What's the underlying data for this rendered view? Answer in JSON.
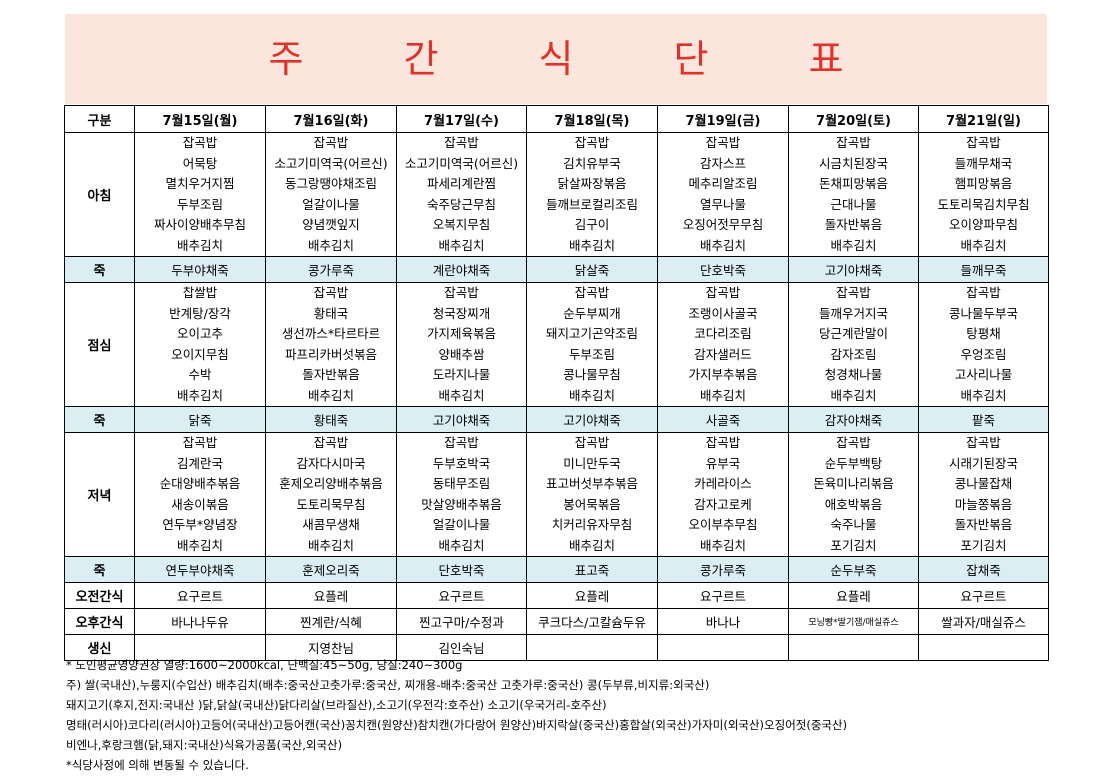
{
  "title": "주 간 식 단 표",
  "columns": {
    "header": "구분",
    "days": [
      "7월15일(월)",
      "7월16일(화)",
      "7월17일(수)",
      "7월18일(목)",
      "7월19일(금)",
      "7월20일(토)",
      "7월21일(일)"
    ]
  },
  "breakfast": {
    "label": "아침",
    "days": [
      [
        "잡곡밥",
        "어묵탕",
        "멸치우거지찜",
        "두부조림",
        "짜사이양배추무침",
        "배추김치"
      ],
      [
        "잡곡밥",
        "소고기미역국(어르신)",
        "동그랑땡야채조림",
        "얼갈이나물",
        "양념깻잎지",
        "배추김치"
      ],
      [
        "잡곡밥",
        "소고기미역국(어르신)",
        "파세리계란찜",
        "숙주당근무침",
        "오복지무침",
        "배추김치"
      ],
      [
        "잡곡밥",
        "김치유부국",
        "닭살짜장볶음",
        "들깨브로컬리조림",
        "김구이",
        "배추김치"
      ],
      [
        "잡곡밥",
        "감자스프",
        "메추리알조림",
        "열무나물",
        "오징어젓무무침",
        "배추김치"
      ],
      [
        "잡곡밥",
        "시금치된장국",
        "돈채피망볶음",
        "근대나물",
        "돌자반볶음",
        "배추김치"
      ],
      [
        "잡곡밥",
        "들깨무채국",
        "햄피망볶음",
        "도토리묵김치무침",
        "오이양파무침",
        "배추김치"
      ]
    ]
  },
  "juk1": {
    "label": "죽",
    "days": [
      "두부야채죽",
      "콩가루죽",
      "계란야채죽",
      "닭살죽",
      "단호박죽",
      "고기야채죽",
      "들깨무죽"
    ]
  },
  "lunch": {
    "label": "점심",
    "days": [
      [
        "찹쌀밥",
        "반계탕/장각",
        "오이고추",
        "오이지무침",
        "수박",
        "배추김치"
      ],
      [
        "잡곡밥",
        "황태국",
        "생선까스*타르타르",
        "파프리카버섯볶음",
        "돌자반볶음",
        "배추김치"
      ],
      [
        "잡곡밥",
        "청국장찌개",
        "가지제육볶음",
        "양배추쌈",
        "도라지나물",
        "배추김치"
      ],
      [
        "잡곡밥",
        "순두부찌개",
        "돼지고기곤약조림",
        "두부조림",
        "콩나물무침",
        "배추김치"
      ],
      [
        "잡곡밥",
        "조랭이사골국",
        "코다리조림",
        "감자샐러드",
        "가지부추볶음",
        "배추김치"
      ],
      [
        "잡곡밥",
        "들깨우거지국",
        "당근계란말이",
        "감자조림",
        "청경채나물",
        "배추김치"
      ],
      [
        "잡곡밥",
        "콩나물두부국",
        "탕평채",
        "우엉조림",
        "고사리나물",
        "배추김치"
      ]
    ]
  },
  "juk2": {
    "label": "죽",
    "days": [
      "닭죽",
      "황태죽",
      "고기야채죽",
      "고기야채죽",
      "사골죽",
      "감자야채죽",
      "팥죽"
    ]
  },
  "dinner": {
    "label": "저녁",
    "days": [
      [
        "잡곡밥",
        "김계란국",
        "순대양배추볶음",
        "새송이볶음",
        "연두부*양념장",
        "배추김치"
      ],
      [
        "잡곡밥",
        "감자다시마국",
        "훈제오리양배추볶음",
        "도토리묵무침",
        "새콤무생채",
        "배추김치"
      ],
      [
        "잡곡밥",
        "두부호박국",
        "동태무조림",
        "맛살양배추볶음",
        "얼갈이나물",
        "배추김치"
      ],
      [
        "잡곡밥",
        "미니만두국",
        "표고버섯부추볶음",
        "봉어묵볶음",
        "치커리유자무침",
        "배추김치"
      ],
      [
        "잡곡밥",
        "유부국",
        "카레라이스",
        "감자고로케",
        "오이부추무침",
        "배추김치"
      ],
      [
        "잡곡밥",
        "순두부백탕",
        "돈육미나리볶음",
        "애호박볶음",
        "숙주나물",
        "포기김치"
      ],
      [
        "잡곡밥",
        "시래기된장국",
        "콩나물잡채",
        "마늘쫑볶음",
        "돌자반볶음",
        "포기김치"
      ]
    ]
  },
  "juk3": {
    "label": "죽",
    "days": [
      "연두부야채죽",
      "훈제오리죽",
      "단호박죽",
      "표고죽",
      "콩가루죽",
      "순두부죽",
      "잡채죽"
    ]
  },
  "am_snack": {
    "label": "오전간식",
    "days": [
      "요구르트",
      "요플레",
      "요구르트",
      "요플레",
      "요구르트",
      "요플레",
      "요구르트"
    ]
  },
  "pm_snack": {
    "label": "오후간식",
    "days": [
      "바나나두유",
      "찐계란/식혜",
      "찐고구마/수정과",
      "쿠크다스/고칼슘두유",
      "바나나",
      "모닝빵*딸기잼/매실쥬스",
      "쌀과자/매실쥬스"
    ]
  },
  "birthday": {
    "label": "생신",
    "days": [
      "",
      "지영찬님",
      "김인숙님",
      "",
      "",
      "",
      ""
    ]
  },
  "notes": [
    "* 노인평균영양권장 열량:1600~2000kcal, 단백질:45~50g, 당질:240~300g",
    "주) 쌀(국내산),누룽지(수입산) 배추김치(배추:중국산고춧가루:중국산, 찌개용-배추:중국산 고춧가루:중국산) 콩(두부류,비지류:외국산)",
    "돼지고기(후지,전지:국내산 )닭,닭살(국내산)닭다리살(브라질산),소고기(우전각:호주산) 소고기(우국거리-호주산)",
    "명태(러시아)코다리(러시아)고등어(국내산)고등어캔(국산)꽁치캔(원양산)참치캔(가다랑어 원양산)바지락살(중국산)홍합살(외국산)가자미(외국산)오징어젓(중국산)",
    "비엔나,후랑크햄(닭,돼지:국내산)식육가공품(국산,외국산)",
    "*식당사정에 의해 변동될 수 있습니다."
  ]
}
